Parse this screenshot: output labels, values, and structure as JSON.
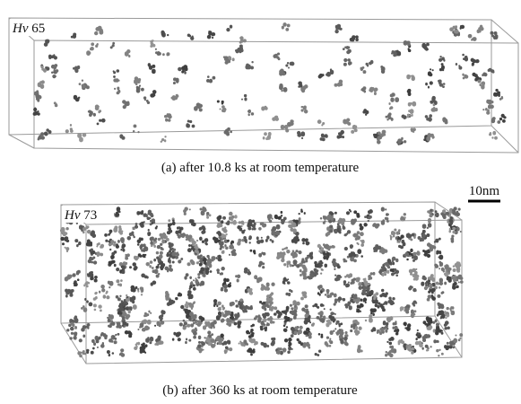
{
  "panels": [
    {
      "hardness_symbol": "Hv",
      "hardness_value": "65",
      "caption": "(a) after 10.8 ks at room temperature"
    },
    {
      "hardness_symbol": "Hv",
      "hardness_value": "73",
      "caption": "(b) after 360 ks at room temperature"
    }
  ],
  "scale_bar": {
    "label": "10nm"
  }
}
